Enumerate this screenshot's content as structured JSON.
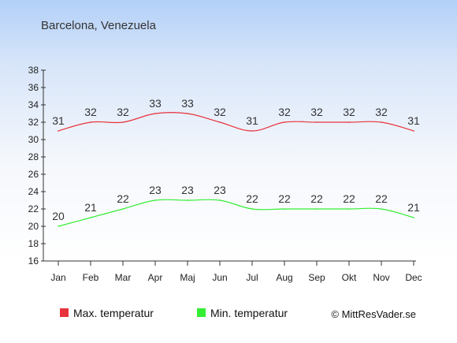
{
  "chart_data": {
    "type": "line",
    "title": "Barcelona, Venezuela",
    "categories": [
      "Jan",
      "Feb",
      "Mar",
      "Apr",
      "Maj",
      "Jun",
      "Jul",
      "Aug",
      "Sep",
      "Okt",
      "Nov",
      "Dec"
    ],
    "series": [
      {
        "name": "Max. temperatur",
        "color": "#e8333c",
        "values": [
          31,
          32,
          32,
          33,
          33,
          32,
          31,
          32,
          32,
          32,
          32,
          31
        ]
      },
      {
        "name": "Min. temperatur",
        "color": "#33ee33",
        "values": [
          20,
          21,
          22,
          23,
          23,
          23,
          22,
          22,
          22,
          22,
          22,
          21
        ]
      }
    ],
    "ylim": [
      16,
      38
    ],
    "yticks": [
      "16",
      "18",
      "20",
      "22",
      "24",
      "26",
      "28",
      "30",
      "32",
      "34",
      "36",
      "38"
    ],
    "grid": false,
    "legend_position": "bottom-left"
  },
  "copyright": "© MittResVader.se"
}
